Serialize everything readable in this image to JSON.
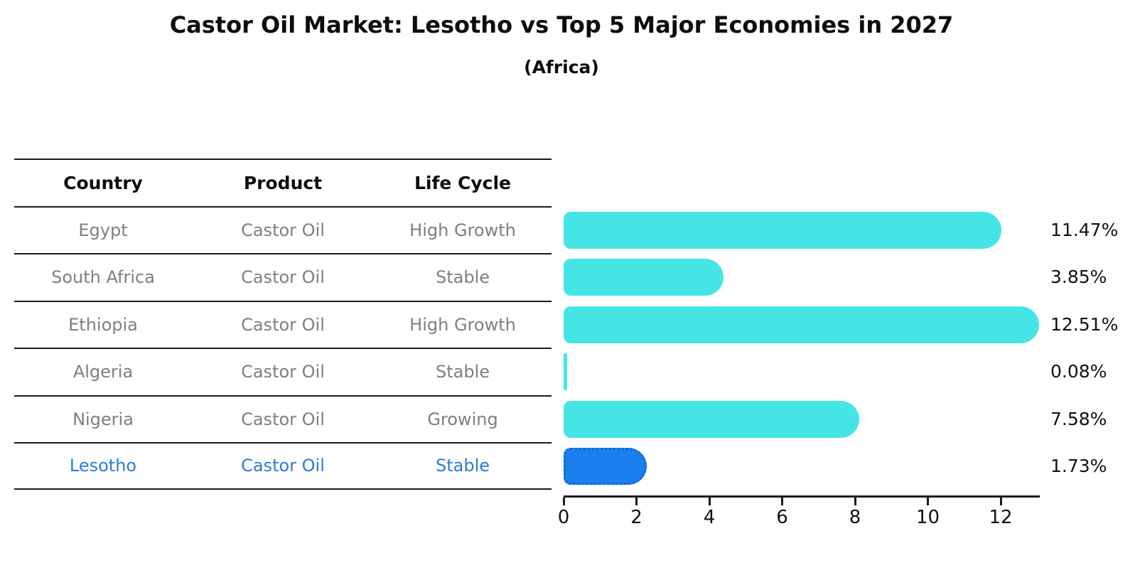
{
  "title": "Castor Oil Market: Lesotho vs Top 5 Major Economies in 2027",
  "subtitle": "(Africa)",
  "table": {
    "headers": [
      "Country",
      "Product",
      "Life Cycle"
    ],
    "rows": [
      {
        "country": "Egypt",
        "product": "Castor Oil",
        "life_cycle": "High Growth",
        "highlighted": false
      },
      {
        "country": "South Africa",
        "product": "Castor Oil",
        "life_cycle": "Stable",
        "highlighted": false
      },
      {
        "country": "Ethiopia",
        "product": "Castor Oil",
        "life_cycle": "High Growth",
        "highlighted": false
      },
      {
        "country": "Algeria",
        "product": "Castor Oil",
        "life_cycle": "Stable",
        "highlighted": false
      },
      {
        "country": "Nigeria",
        "product": "Castor Oil",
        "life_cycle": "Growing",
        "highlighted": false
      },
      {
        "country": "Lesotho",
        "product": "Castor Oil",
        "life_cycle": "Stable",
        "highlighted": true
      }
    ]
  },
  "chart_data": {
    "type": "bar",
    "orientation": "horizontal",
    "title": "Castor Oil Market: Lesotho vs Top 5 Major Economies in 2027",
    "subtitle": "(Africa)",
    "categories": [
      "Egypt",
      "South Africa",
      "Ethiopia",
      "Algeria",
      "Nigeria",
      "Lesotho"
    ],
    "values": [
      11.47,
      3.85,
      12.51,
      0.08,
      7.58,
      1.73
    ],
    "value_labels": [
      "11.47%",
      "3.85%",
      "12.51%",
      "0.08%",
      "7.58%",
      "1.73%"
    ],
    "unit": "%",
    "x_ticks": [
      0,
      2,
      4,
      6,
      8,
      10,
      12
    ],
    "xlim": [
      0,
      13.1
    ],
    "grid": false,
    "legend": false,
    "highlight_index": 5,
    "highlight_category": "Lesotho"
  },
  "colors": {
    "bar": "#46E5E5",
    "highlight_bar": "#1A80EE",
    "highlight_border": "#1565D8",
    "highlight_text": "#2b7cd5",
    "table_text": "#7f7f7f",
    "heading_text": "#0d0d0d",
    "line": "#1a1a1a"
  }
}
